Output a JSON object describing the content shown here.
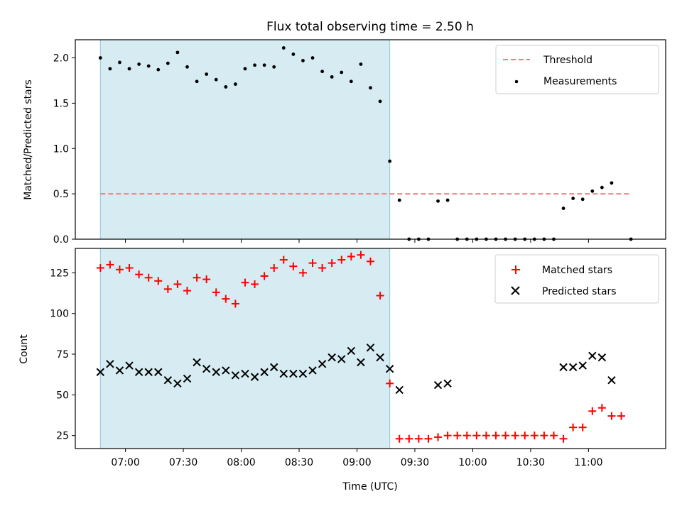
{
  "figure": {
    "title": "Flux total observing time = 2.50 h",
    "xlabel": "Time (UTC)"
  },
  "chart_data": [
    {
      "type": "scatter",
      "title": "Flux total observing time = 2.50 h",
      "ylabel": "Matched/Predicted stars",
      "xlabel": "",
      "xlim": [
        "06:34",
        "11:40"
      ],
      "ylim": [
        0,
        2.2
      ],
      "yticks": [
        "0.0",
        "0.5",
        "1.0",
        "1.5",
        "2.0"
      ],
      "shaded_span": {
        "start": "06:47",
        "end": "09:17",
        "color": "#add8e6"
      },
      "threshold": {
        "name": "Threshold",
        "value": 0.5,
        "from": "06:47",
        "to": "11:22",
        "style": "dashed",
        "color": "#f08080"
      },
      "legend": {
        "position": "top-right",
        "entries": [
          "Threshold",
          "Measurements"
        ]
      },
      "series": [
        {
          "name": "Measurements",
          "marker": "dot",
          "color": "#000000",
          "x": [
            "06:47",
            "06:52",
            "06:57",
            "07:02",
            "07:07",
            "07:12",
            "07:17",
            "07:22",
            "07:27",
            "07:32",
            "07:37",
            "07:42",
            "07:47",
            "07:52",
            "07:57",
            "08:02",
            "08:07",
            "08:12",
            "08:17",
            "08:22",
            "08:27",
            "08:32",
            "08:37",
            "08:42",
            "08:47",
            "08:52",
            "08:57",
            "09:02",
            "09:07",
            "09:12",
            "09:17",
            "09:22",
            "09:27",
            "09:32",
            "09:37",
            "09:42",
            "09:47",
            "09:52",
            "09:57",
            "10:02",
            "10:07",
            "10:12",
            "10:17",
            "10:22",
            "10:27",
            "10:32",
            "10:37",
            "10:42",
            "10:47",
            "10:52",
            "10:57",
            "11:02",
            "11:07",
            "11:12",
            "11:22"
          ],
          "y": [
            2.0,
            1.88,
            1.95,
            1.88,
            1.93,
            1.91,
            1.87,
            1.94,
            2.06,
            1.9,
            1.74,
            1.82,
            1.76,
            1.68,
            1.71,
            1.88,
            1.92,
            1.92,
            1.9,
            2.11,
            2.04,
            1.97,
            2.0,
            1.85,
            1.79,
            1.84,
            1.74,
            1.93,
            1.67,
            1.52,
            0.86,
            0.43,
            0.0,
            0.0,
            0.0,
            0.42,
            0.43,
            0.0,
            0.0,
            0.0,
            0.0,
            0.0,
            0.0,
            0.0,
            0.0,
            0.0,
            0.0,
            0.0,
            0.34,
            0.45,
            0.44,
            0.53,
            0.57,
            0.62,
            0.0
          ]
        }
      ]
    },
    {
      "type": "scatter",
      "title": "",
      "ylabel": "Count",
      "xlabel": "Time (UTC)",
      "xlim": [
        "06:34",
        "11:40"
      ],
      "ylim": [
        17,
        140
      ],
      "yticks": [
        "25",
        "50",
        "75",
        "100",
        "125"
      ],
      "xticks": [
        "07:00",
        "07:30",
        "08:00",
        "08:30",
        "09:00",
        "09:30",
        "10:00",
        "10:30",
        "11:00"
      ],
      "shaded_span": {
        "start": "06:47",
        "end": "09:17",
        "color": "#add8e6"
      },
      "legend": {
        "position": "top-right",
        "entries": [
          "Matched stars",
          "Predicted stars"
        ]
      },
      "series": [
        {
          "name": "Matched stars",
          "marker": "plus",
          "color": "#ff0000",
          "x": [
            "06:47",
            "06:52",
            "06:57",
            "07:02",
            "07:07",
            "07:12",
            "07:17",
            "07:22",
            "07:27",
            "07:32",
            "07:37",
            "07:42",
            "07:47",
            "07:52",
            "07:57",
            "08:02",
            "08:07",
            "08:12",
            "08:17",
            "08:22",
            "08:27",
            "08:32",
            "08:37",
            "08:42",
            "08:47",
            "08:52",
            "08:57",
            "09:02",
            "09:07",
            "09:12",
            "09:17",
            "09:22",
            "09:27",
            "09:32",
            "09:37",
            "09:42",
            "09:47",
            "09:52",
            "09:57",
            "10:02",
            "10:07",
            "10:12",
            "10:17",
            "10:22",
            "10:27",
            "10:32",
            "10:37",
            "10:42",
            "10:47",
            "10:52",
            "10:57",
            "11:02",
            "11:07",
            "11:12",
            "11:17"
          ],
          "y": [
            128,
            130,
            127,
            128,
            124,
            122,
            120,
            115,
            118,
            114,
            122,
            121,
            113,
            109,
            106,
            119,
            118,
            123,
            128,
            133,
            129,
            125,
            131,
            128,
            131,
            133,
            135,
            136,
            132,
            111,
            57,
            23,
            23,
            23,
            23,
            24,
            25,
            25,
            25,
            25,
            25,
            25,
            25,
            25,
            25,
            25,
            25,
            25,
            23,
            30,
            30,
            40,
            42,
            37,
            37
          ]
        },
        {
          "name": "Predicted stars",
          "marker": "x",
          "color": "#000000",
          "x": [
            "06:47",
            "06:52",
            "06:57",
            "07:02",
            "07:07",
            "07:12",
            "07:17",
            "07:22",
            "07:27",
            "07:32",
            "07:37",
            "07:42",
            "07:47",
            "07:52",
            "07:57",
            "08:02",
            "08:07",
            "08:12",
            "08:17",
            "08:22",
            "08:27",
            "08:32",
            "08:37",
            "08:42",
            "08:47",
            "08:52",
            "08:57",
            "09:02",
            "09:07",
            "09:12",
            "09:17",
            "09:22",
            "09:42",
            "09:47",
            "10:47",
            "10:52",
            "10:57",
            "11:02",
            "11:07",
            "11:12"
          ],
          "y": [
            64,
            69,
            65,
            68,
            64,
            64,
            64,
            59,
            57,
            60,
            70,
            66,
            64,
            65,
            62,
            63,
            61,
            64,
            67,
            63,
            63,
            63,
            65,
            69,
            73,
            72,
            77,
            70,
            79,
            73,
            66,
            53,
            56,
            57,
            67,
            67,
            68,
            74,
            73,
            59
          ]
        }
      ]
    }
  ]
}
